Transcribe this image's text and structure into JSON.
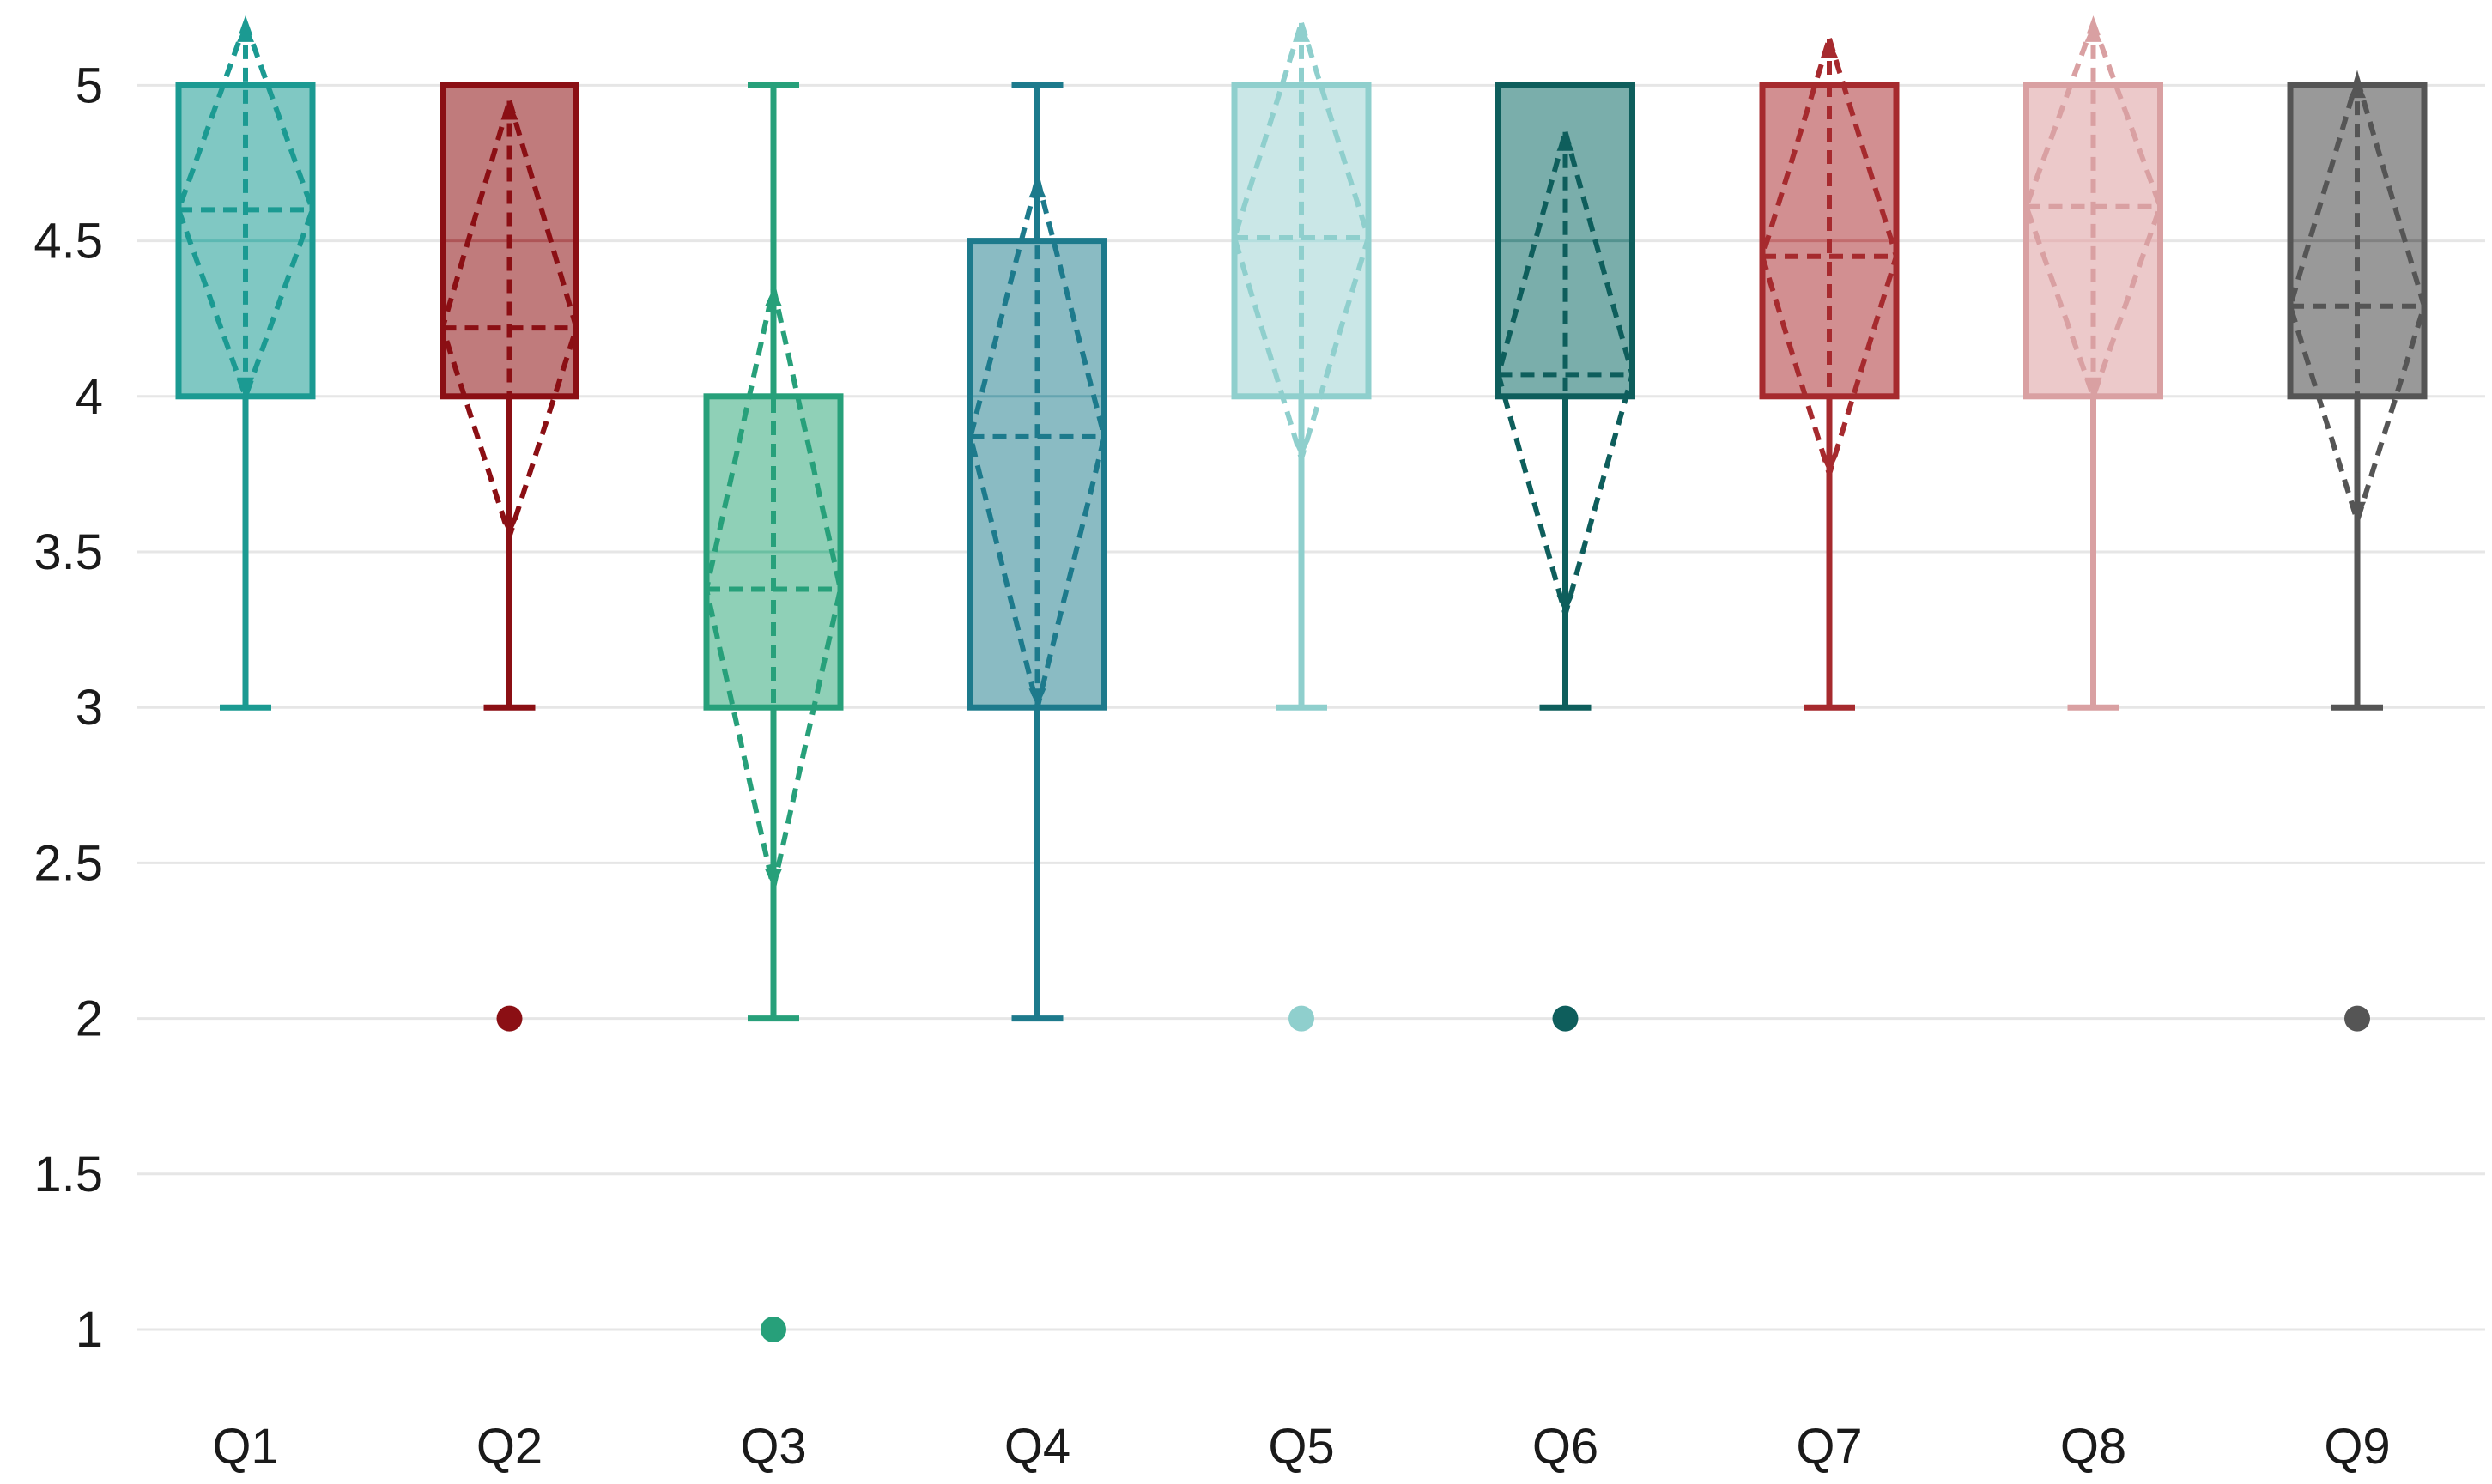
{
  "chart_data": {
    "type": "boxplot",
    "title": "",
    "xlabel": "",
    "ylabel": "",
    "ylim": [
      0.8,
      5.2
    ],
    "y_ticks": [
      "1",
      "1.5",
      "2",
      "2.5",
      "3",
      "3.5",
      "4",
      "4.5",
      "5"
    ],
    "grid": true,
    "legend": "none",
    "categories": [
      "Q1",
      "Q2",
      "Q3",
      "Q4",
      "Q5",
      "Q6",
      "Q7",
      "Q8",
      "Q9"
    ],
    "series": [
      {
        "name": "Q1",
        "color": "#1b9a92",
        "fill": "#80c8c3",
        "whisker_low": 3,
        "q1": 4,
        "median": 4.5,
        "q3": 5,
        "whisker_high": 5,
        "mean": 4.6,
        "mean_minus_sd": 4.0,
        "mean_plus_sd": 5.2,
        "outliers": []
      },
      {
        "name": "Q2",
        "color": "#8b0f14",
        "fill": "#c07b7c",
        "whisker_low": 3,
        "q1": 4,
        "median": 4.5,
        "q3": 5,
        "whisker_high": 5,
        "mean": 4.22,
        "mean_minus_sd": 3.55,
        "mean_plus_sd": 4.95,
        "outliers": [
          2
        ]
      },
      {
        "name": "Q3",
        "color": "#27a07a",
        "fill": "#8fd0b7",
        "whisker_low": 2,
        "q1": 3,
        "median": 3.5,
        "q3": 4,
        "whisker_high": 5,
        "mean": 3.38,
        "mean_minus_sd": 2.42,
        "mean_plus_sd": 4.35,
        "outliers": [
          1
        ]
      },
      {
        "name": "Q4",
        "color": "#1d7a8c",
        "fill": "#8abbc3",
        "whisker_low": 2,
        "q1": 3,
        "median": 4,
        "q3": 4.5,
        "whisker_high": 5,
        "mean": 3.87,
        "mean_minus_sd": 3.0,
        "mean_plus_sd": 4.7,
        "outliers": []
      },
      {
        "name": "Q5",
        "color": "#8fcfcd",
        "fill": "#cae7e7",
        "whisker_low": 3,
        "q1": 4,
        "median": 4.5,
        "q3": 5,
        "whisker_high": 5,
        "mean": 4.51,
        "mean_minus_sd": 3.8,
        "mean_plus_sd": 5.2,
        "outliers": [
          2
        ]
      },
      {
        "name": "Q6",
        "color": "#0e5e5c",
        "fill": "#7aaeab",
        "whisker_low": 3,
        "q1": 4,
        "median": 4.5,
        "q3": 5,
        "whisker_high": 5,
        "mean": 4.07,
        "mean_minus_sd": 3.3,
        "mean_plus_sd": 4.85,
        "outliers": [
          2
        ]
      },
      {
        "name": "Q7",
        "color": "#a62a2e",
        "fill": "#d28f91",
        "whisker_low": 3,
        "q1": 4,
        "median": 4.5,
        "q3": 5,
        "whisker_high": 5,
        "mean": 4.45,
        "mean_minus_sd": 3.75,
        "mean_plus_sd": 5.15,
        "outliers": []
      },
      {
        "name": "Q8",
        "color": "#d9a0a2",
        "fill": "#ecc9ca",
        "whisker_low": 3,
        "q1": 4,
        "median": 4.5,
        "q3": 5,
        "whisker_high": 5,
        "mean": 4.61,
        "mean_minus_sd": 4.0,
        "mean_plus_sd": 5.2,
        "outliers": []
      },
      {
        "name": "Q9",
        "color": "#555555",
        "fill": "#999999",
        "whisker_low": 3,
        "q1": 4,
        "median": 4.5,
        "q3": 5,
        "whisker_high": 5,
        "mean": 4.29,
        "mean_minus_sd": 3.6,
        "mean_plus_sd": 5.02,
        "outliers": [
          2
        ]
      }
    ]
  }
}
